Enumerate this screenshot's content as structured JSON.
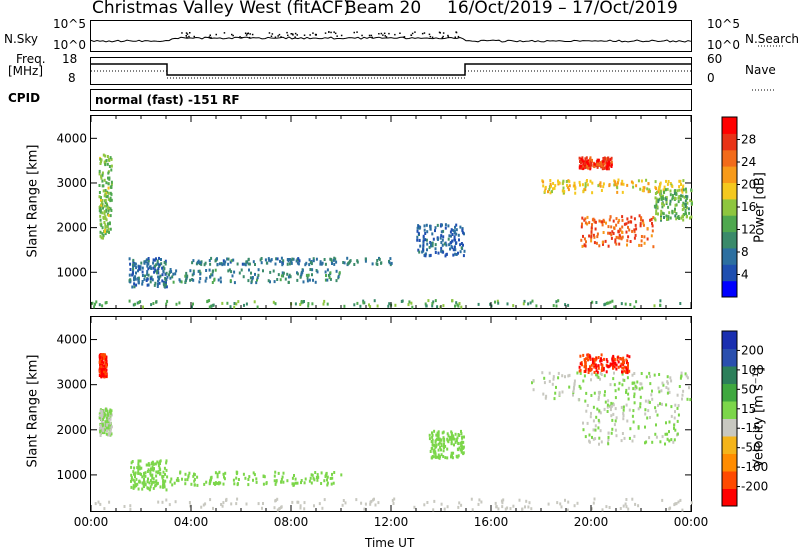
{
  "header": {
    "station": "Christmas Valley West (fitACF)",
    "beam": "Beam 20",
    "dates": "16/Oct/2019 – 17/Oct/2019"
  },
  "noise_panel": {
    "left_label": "N.Sky",
    "right_label": "N.Search",
    "ticks_left": [
      "10^5",
      "10^0"
    ],
    "ticks_right": [
      "10^5",
      "10^0"
    ]
  },
  "freq_panel": {
    "left_label_1": "Freq.",
    "left_label_2": "[MHz]",
    "right_label": "Nave",
    "ticks_left": [
      "18",
      "8"
    ],
    "ticks_right": [
      "60",
      "0"
    ]
  },
  "cpid": {
    "label": "CPID",
    "value": "normal (fast) -151 RF"
  },
  "colors": {
    "power": [
      "#0000ff",
      "#1f4fb0",
      "#2c6fa0",
      "#3a8a6a",
      "#4fa84f",
      "#8ec63f",
      "#f4c81f",
      "#f79a1a",
      "#f26b1a",
      "#e83317",
      "#ff0000"
    ],
    "velocity": [
      "#ff0000",
      "#ff4a00",
      "#ff8c00",
      "#f4b41a",
      "#c8c8c0",
      "#7cd64a",
      "#3fa83f",
      "#2c7f5a",
      "#2a4fae",
      "#1a2fb0"
    ]
  },
  "chart_data": [
    {
      "type": "heatmap",
      "name": "power",
      "ylabel": "Slant Range [km]",
      "yticks": [
        "1000",
        "2000",
        "3000",
        "4000"
      ],
      "ylim": [
        200,
        4500
      ],
      "xlim": [
        0,
        24
      ],
      "colorbar_label": "Power [dB]",
      "colorbar_ticks": [
        "4",
        "8",
        "12",
        "16",
        "20",
        "24",
        "28"
      ],
      "colorbar_range": [
        0,
        30
      ],
      "regions": [
        {
          "t0": 0.3,
          "t1": 0.8,
          "r0": 1800,
          "r1": 3700,
          "level": 14
        },
        {
          "t0": 1.5,
          "t1": 3.0,
          "r0": 700,
          "r1": 1350,
          "level": 7
        },
        {
          "t0": 3.0,
          "t1": 10.0,
          "r0": 800,
          "r1": 1100,
          "level": 9
        },
        {
          "t0": 4.0,
          "t1": 12.0,
          "r0": 1200,
          "r1": 1350,
          "level": 8
        },
        {
          "t0": 13.0,
          "t1": 14.9,
          "r0": 1400,
          "r1": 2100,
          "level": 6
        },
        {
          "t0": 18.0,
          "t1": 23.8,
          "r0": 2800,
          "r1": 3100,
          "level": 18
        },
        {
          "t0": 19.5,
          "t1": 22.5,
          "r0": 1600,
          "r1": 2300,
          "level": 24
        },
        {
          "t0": 22.5,
          "t1": 24.0,
          "r0": 2200,
          "r1": 2900,
          "level": 13
        },
        {
          "t0": 19.5,
          "t1": 20.8,
          "r0": 3350,
          "r1": 3600,
          "level": 26
        },
        {
          "t0": 0.0,
          "t1": 24.0,
          "r0": 250,
          "r1": 400,
          "level": 12
        }
      ]
    },
    {
      "type": "heatmap",
      "name": "velocity",
      "ylabel": "Slant Range [km]",
      "yticks": [
        "1000",
        "2000",
        "3000",
        "4000"
      ],
      "ylim": [
        200,
        4500
      ],
      "xlim": [
        0,
        24
      ],
      "xticks": [
        "00:00",
        "04:00",
        "08:00",
        "12:00",
        "16:00",
        "20:00",
        "00:00"
      ],
      "xlabel": "Time UT",
      "colorbar_label": "Velocity [m s⁻¹]",
      "colorbar_ticks": [
        "200",
        "100",
        "50",
        "15",
        "-15",
        "-50",
        "-100",
        "-200"
      ],
      "colorbar_range": [
        -250,
        250
      ],
      "regions": [
        {
          "t0": 0.3,
          "t1": 0.8,
          "r0": 1900,
          "r1": 2500,
          "level": 0
        },
        {
          "t0": 0.3,
          "t1": 0.6,
          "r0": 3200,
          "r1": 3700,
          "level": -200
        },
        {
          "t0": 1.5,
          "t1": 3.0,
          "r0": 700,
          "r1": 1350,
          "level": 30
        },
        {
          "t0": 3.0,
          "t1": 10.0,
          "r0": 800,
          "r1": 1100,
          "level": 25
        },
        {
          "t0": 13.5,
          "t1": 14.9,
          "r0": 1400,
          "r1": 2000,
          "level": 20
        },
        {
          "t0": 17.5,
          "t1": 24.0,
          "r0": 2700,
          "r1": 3300,
          "level": 0
        },
        {
          "t0": 19.5,
          "t1": 23.5,
          "r0": 1700,
          "r1": 2700,
          "level": 0
        },
        {
          "t0": 19.5,
          "t1": 21.5,
          "r0": 3300,
          "r1": 3700,
          "level": -200
        },
        {
          "t0": 0.0,
          "t1": 24.0,
          "r0": 250,
          "r1": 500,
          "level": -40
        }
      ]
    }
  ],
  "xaxis": {
    "ticks": [
      "00:00",
      "04:00",
      "08:00",
      "12:00",
      "16:00",
      "20:00",
      "00:00"
    ],
    "label": "Time UT"
  }
}
